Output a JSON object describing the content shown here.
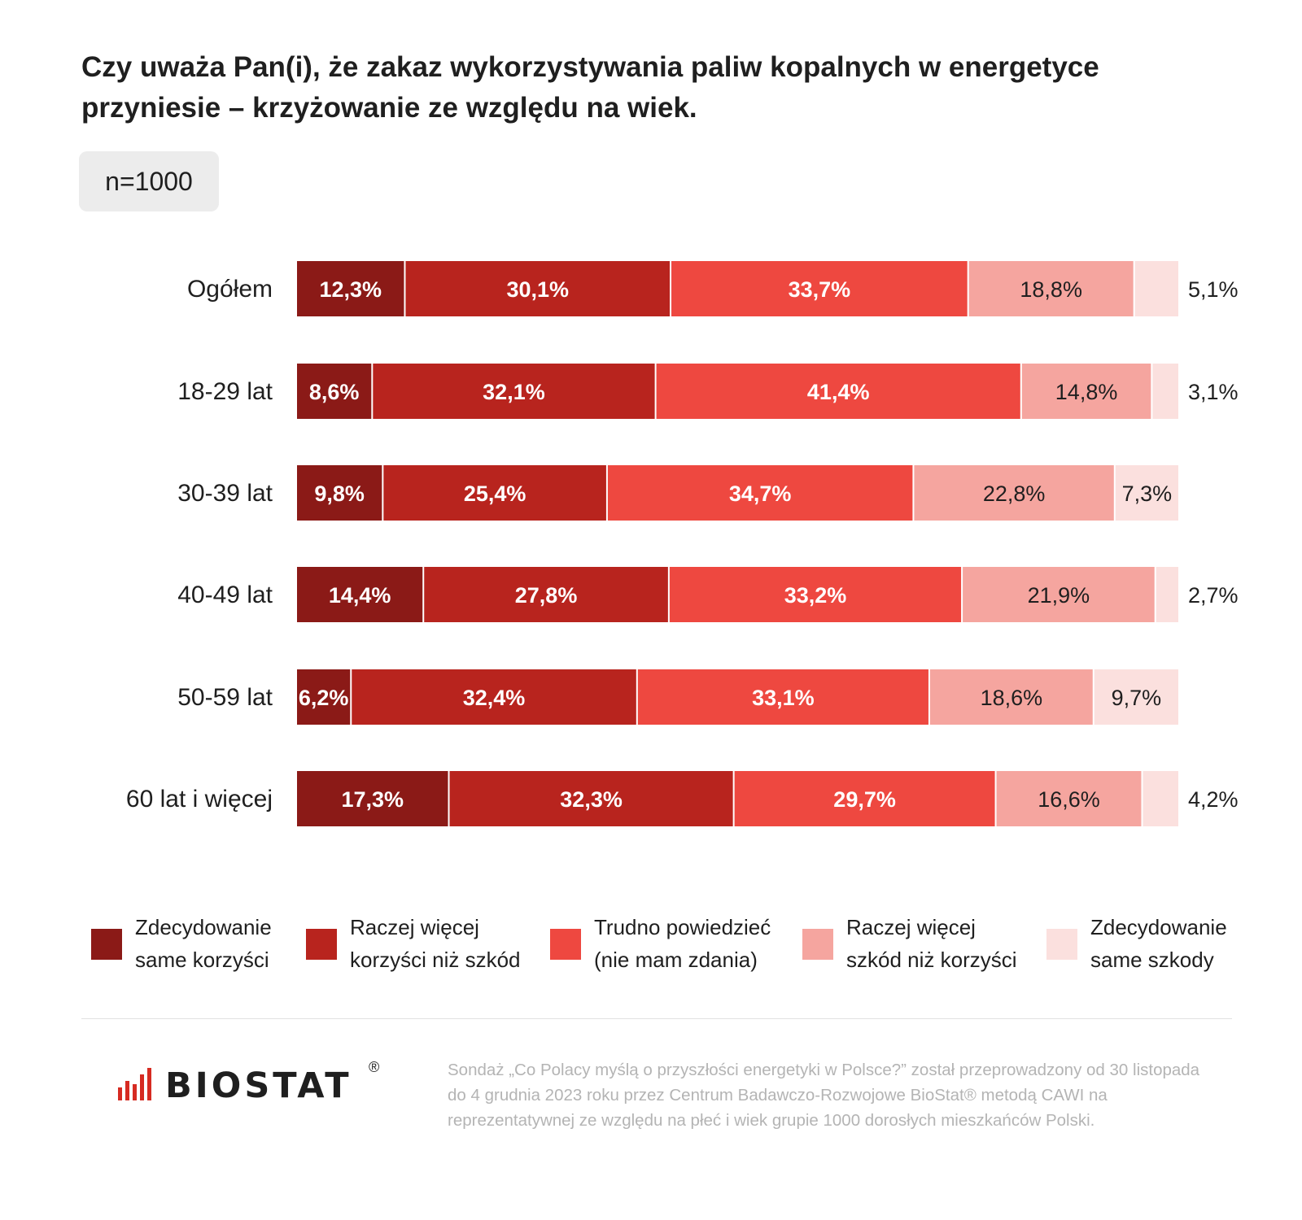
{
  "header": {
    "title_line1": "Czy uważa Pan(i), że zakaz wykorzystywania paliw kopalnych w energetyce",
    "title_line2": "przyniesie – krzyżowanie ze względu na wiek.",
    "sample_badge": "n=1000"
  },
  "chart_data": {
    "type": "bar",
    "orientation": "horizontal",
    "stacked": true,
    "normalized": "100%",
    "title": "Czy uważa Pan(i), że zakaz wykorzystywania paliw kopalnych w energetyce przyniesie – krzyżowanie ze względu na wiek.",
    "categories": [
      "Ogółem",
      "18-29 lat",
      "30-39 lat",
      "40-49 lat",
      "50-59 lat",
      "60 lat i więcej"
    ],
    "series": [
      {
        "name": "Zdecydowanie same korzyści",
        "values": [
          12.3,
          8.6,
          9.8,
          14.4,
          6.2,
          17.3
        ],
        "labels": [
          "12,3%",
          "8,6%",
          "9,8%",
          "14,4%",
          "6,2%",
          "17,3%"
        ],
        "color": "#8b1a17"
      },
      {
        "name": "Raczej więcej korzyści niż szkód",
        "values": [
          30.1,
          32.1,
          25.4,
          27.8,
          32.4,
          32.3
        ],
        "labels": [
          "30,1%",
          "32,1%",
          "25,4%",
          "27,8%",
          "32,4%",
          "32,3%"
        ],
        "color": "#b8241e"
      },
      {
        "name": "Trudno powiedzieć (nie mam zdania)",
        "values": [
          33.7,
          41.4,
          34.7,
          33.2,
          33.1,
          29.7
        ],
        "labels": [
          "33,7%",
          "41,4%",
          "34,7%",
          "33,2%",
          "33,1%",
          "29,7%"
        ],
        "color": "#ee4840"
      },
      {
        "name": "Raczej więcej szkód niż korzyści",
        "values": [
          18.8,
          14.8,
          22.8,
          21.9,
          18.6,
          16.6
        ],
        "labels": [
          "18,8%",
          "14,8%",
          "22,8%",
          "21,9%",
          "18,6%",
          "16,6%"
        ],
        "color": "#f5a59f"
      },
      {
        "name": "Zdecydowanie same szkody",
        "values": [
          5.1,
          3.1,
          7.3,
          2.7,
          9.7,
          4.2
        ],
        "labels": [
          "5,1%",
          "3,1%",
          "7,3%",
          "2,7%",
          "9,7%",
          "4,2%"
        ],
        "color": "#fbe0de"
      }
    ],
    "legend_position": "bottom",
    "grid": false
  },
  "legend": [
    {
      "line1": "Zdecydowanie",
      "line2": "same korzyści",
      "color": "#8b1a17"
    },
    {
      "line1": "Raczej więcej",
      "line2": "korzyści niż szkód",
      "color": "#b8241e"
    },
    {
      "line1": "Trudno powiedzieć",
      "line2": "(nie mam zdania)",
      "color": "#ee4840"
    },
    {
      "line1": "Raczej więcej",
      "line2": "szkód niż korzyści",
      "color": "#f5a59f"
    },
    {
      "line1": "Zdecydowanie",
      "line2": "same szkody",
      "color": "#fbe0de"
    }
  ],
  "footer": {
    "logo_text": "BIOSTAT",
    "logo_mark": "®",
    "note_line1": "Sondaż „Co Polacy myślą o przyszłości energetyki w Polsce?” został przeprowadzony od 30 listopada",
    "note_line2": "do 4 grudnia 2023 roku przez Centrum Badawczo-Rozwojowe BioStat® metodą CAWI na",
    "note_line3": "reprezentatywnej ze względu na płeć i wiek grupie 1000 dorosłych mieszkańców Polski."
  }
}
